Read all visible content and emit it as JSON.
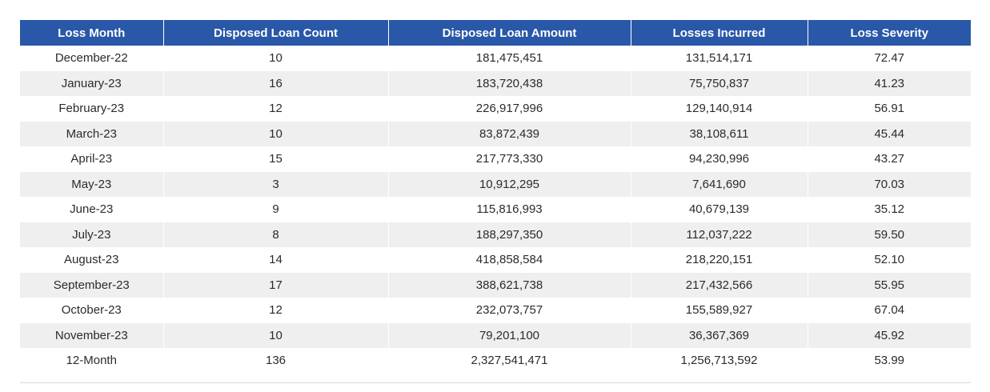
{
  "table": {
    "columns": [
      "Loss Month",
      "Disposed Loan Count",
      "Disposed Loan Amount",
      "Losses Incurred",
      "Loss Severity"
    ],
    "rows": [
      [
        "December-22",
        "10",
        "181,475,451",
        "131,514,171",
        "72.47"
      ],
      [
        "January-23",
        "16",
        "183,720,438",
        "75,750,837",
        "41.23"
      ],
      [
        "February-23",
        "12",
        "226,917,996",
        "129,140,914",
        "56.91"
      ],
      [
        "March-23",
        "10",
        "83,872,439",
        "38,108,611",
        "45.44"
      ],
      [
        "April-23",
        "15",
        "217,773,330",
        "94,230,996",
        "43.27"
      ],
      [
        "May-23",
        "3",
        "10,912,295",
        "7,641,690",
        "70.03"
      ],
      [
        "June-23",
        "9",
        "115,816,993",
        "40,679,139",
        "35.12"
      ],
      [
        "July-23",
        "8",
        "188,297,350",
        "112,037,222",
        "59.50"
      ],
      [
        "August-23",
        "14",
        "418,858,584",
        "218,220,151",
        "52.10"
      ],
      [
        "September-23",
        "17",
        "388,621,738",
        "217,432,566",
        "55.95"
      ],
      [
        "October-23",
        "12",
        "232,073,757",
        "155,589,927",
        "67.04"
      ],
      [
        "November-23",
        "10",
        "79,201,100",
        "36,367,369",
        "45.92"
      ],
      [
        "12-Month",
        "136",
        "2,327,541,471",
        "1,256,713,592",
        "53.99"
      ]
    ]
  },
  "colors": {
    "header_bg": "#2a58a8",
    "stripe_bg": "#efefef"
  }
}
